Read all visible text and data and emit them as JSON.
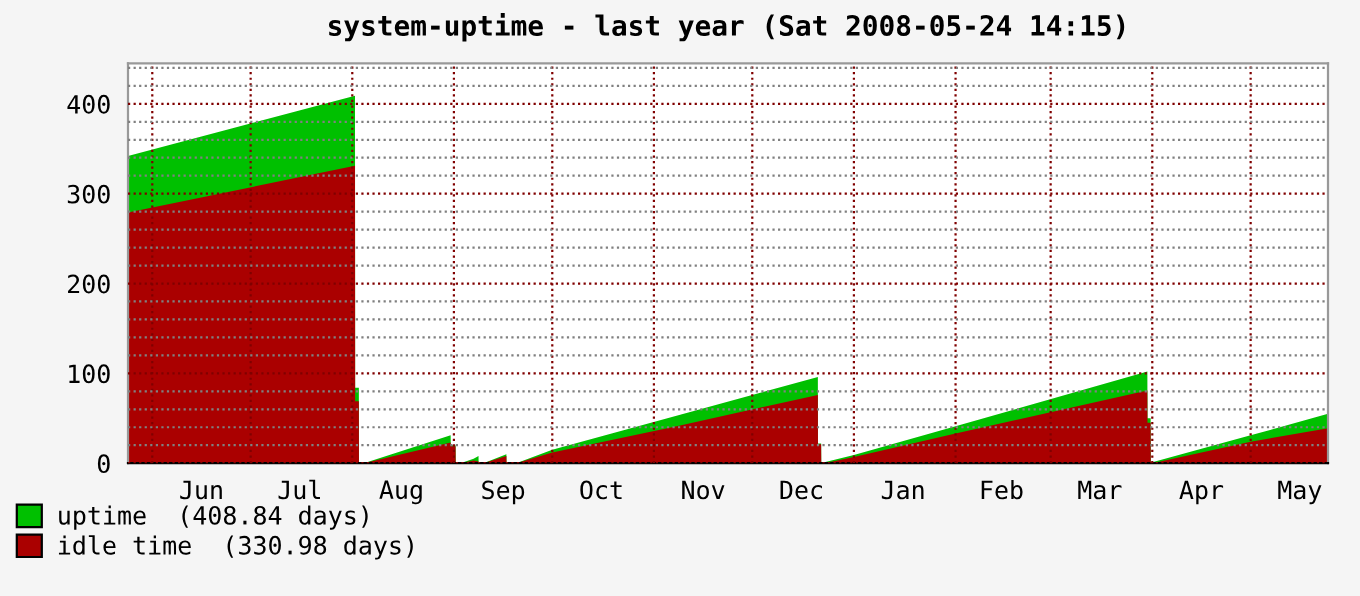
{
  "chart_data": {
    "type": "area",
    "title": "system-uptime - last year (Sat 2008-05-24 14:15)",
    "x": [
      "2007-05-24T14:15",
      "2007-08-01T20:00",
      "2007-08-01T21:00",
      "2007-08-03T00:00",
      "2007-08-03T01:00",
      "2007-08-04T12:00",
      "2007-08-31T00:00",
      "2007-08-31T01:00",
      "2007-09-01T12:00",
      "2007-09-01T13:00",
      "2007-09-03T00:00",
      "2007-09-07T00:00",
      "2007-09-08T12:00",
      "2007-09-08T13:00",
      "2007-09-10T00:00",
      "2007-09-17T00:00",
      "2007-09-17T01:00",
      "2007-09-20T00:00",
      "2007-10-01T00:00",
      "2007-11-09T00:00",
      "2007-12-21T00:00",
      "2007-12-21T01:00",
      "2007-12-22T00:00",
      "2007-12-22T01:00",
      "2007-12-23T00:00",
      "2008-01-01T00:00",
      "2008-02-01T00:00",
      "2008-03-30T12:00",
      "2008-03-30T13:00",
      "2008-03-31T12:00",
      "2008-03-31T13:00",
      "2008-04-01T00:00",
      "2008-05-01T00:00",
      "2008-05-24T14:15"
    ],
    "series": [
      {
        "name": "uptime  (408.84 days)",
        "color": "#00c000",
        "values": [
          342,
          409,
          84,
          84,
          0,
          0,
          31,
          20,
          20,
          0,
          0,
          5,
          8,
          0,
          0,
          10,
          0,
          0,
          15,
          54,
          96,
          22,
          22,
          0,
          1,
          9,
          41,
          102,
          50,
          50,
          0,
          1,
          31,
          55
        ]
      },
      {
        "name": "idle time  (330.98 days)",
        "color": "#aa0000",
        "values": [
          279,
          331,
          69,
          69,
          0,
          0,
          23,
          19,
          19,
          0,
          0,
          3,
          2,
          0,
          0,
          8,
          0,
          0,
          12,
          42,
          76,
          21,
          21,
          0,
          0,
          7,
          33,
          81,
          45,
          45,
          0,
          0,
          24,
          39
        ]
      }
    ],
    "xlim": [
      "2007-05-24T14:15",
      "2008-05-24T14:15"
    ],
    "xticks": [
      {
        "value": "2007-06-01",
        "label": null
      },
      {
        "value": "2007-06-16",
        "label": "Jun"
      },
      {
        "value": "2007-07-01",
        "label": null
      },
      {
        "value": "2007-07-16",
        "label": "Jul"
      },
      {
        "value": "2007-08-01",
        "label": null
      },
      {
        "value": "2007-08-16",
        "label": "Aug"
      },
      {
        "value": "2007-09-01",
        "label": null
      },
      {
        "value": "2007-09-16",
        "label": "Sep"
      },
      {
        "value": "2007-10-01",
        "label": null
      },
      {
        "value": "2007-10-16",
        "label": "Oct"
      },
      {
        "value": "2007-11-01",
        "label": null
      },
      {
        "value": "2007-11-16",
        "label": "Nov"
      },
      {
        "value": "2007-12-01",
        "label": null
      },
      {
        "value": "2007-12-16",
        "label": "Dec"
      },
      {
        "value": "2008-01-01",
        "label": null
      },
      {
        "value": "2008-01-16",
        "label": "Jan"
      },
      {
        "value": "2008-02-01",
        "label": null
      },
      {
        "value": "2008-02-15",
        "label": "Feb"
      },
      {
        "value": "2008-03-01",
        "label": null
      },
      {
        "value": "2008-03-16",
        "label": "Mar"
      },
      {
        "value": "2008-04-01",
        "label": null
      },
      {
        "value": "2008-04-16",
        "label": "Apr"
      },
      {
        "value": "2008-05-01",
        "label": null
      },
      {
        "value": "2008-05-16",
        "label": "May"
      }
    ],
    "ylim": [
      0,
      445
    ],
    "yticks": [
      0,
      {
        "value": 20,
        "label": null
      },
      {
        "value": 40,
        "label": null
      },
      {
        "value": 60,
        "label": null
      },
      {
        "value": 80,
        "label": null
      },
      100,
      {
        "value": 120,
        "label": null
      },
      {
        "value": 140,
        "label": null
      },
      {
        "value": 160,
        "label": null
      },
      {
        "value": 180,
        "label": null
      },
      200,
      {
        "value": 220,
        "label": null
      },
      {
        "value": 240,
        "label": null
      },
      {
        "value": 260,
        "label": null
      },
      {
        "value": 280,
        "label": null
      },
      300,
      {
        "value": 320,
        "label": null
      },
      {
        "value": 340,
        "label": null
      },
      {
        "value": 360,
        "label": null
      },
      {
        "value": 380,
        "label": null
      },
      400,
      {
        "value": 420,
        "label": null
      },
      {
        "value": 440,
        "label": null
      }
    ],
    "grid": true,
    "legend": "bottom"
  }
}
